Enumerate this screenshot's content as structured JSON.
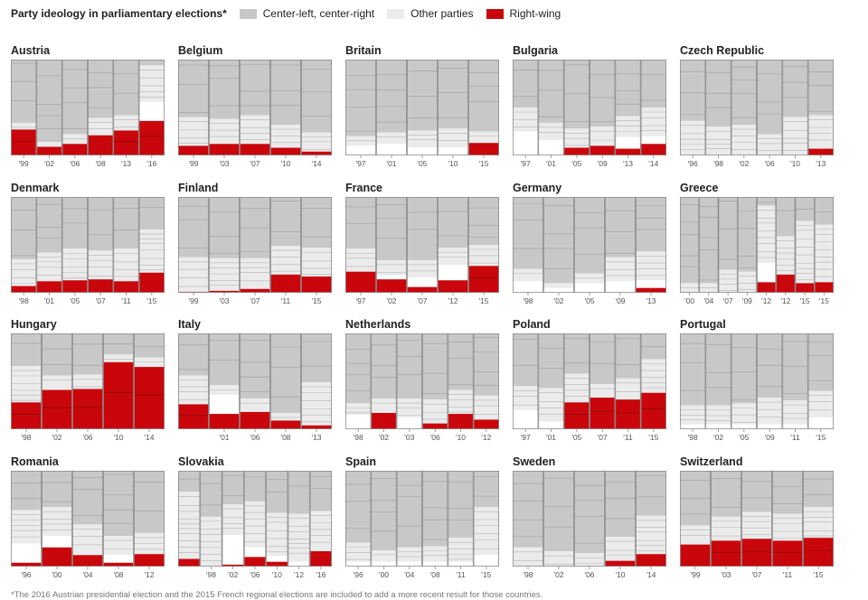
{
  "legend": {
    "title": "Party ideology in parliamentary elections*",
    "items": [
      {
        "label": "Center-left, center-right",
        "color": "#c8c8c8"
      },
      {
        "label": "Other parties",
        "color": "#ebebeb"
      },
      {
        "label": "Right-wing",
        "color": "#c8060b"
      }
    ]
  },
  "footnote": "*The 2016 Austrian presidential election and the 2015 French regional elections are included to add a more recent result for those countries.",
  "chart_data": {
    "type": "bar",
    "subtype": "stacked-100-percent-small-multiples",
    "title": "Party ideology in parliamentary elections*",
    "ylim": [
      0,
      100
    ],
    "colors": {
      "center": "#c8c8c8",
      "other": "#ebebeb",
      "right": "#c8060b",
      "white": "#ffffff"
    },
    "panels": [
      {
        "country": "Austria",
        "years": [
          "'99",
          "'02",
          "'06",
          "'08",
          "'13",
          "'16"
        ],
        "right": [
          27,
          9,
          12,
          21,
          26,
          36
        ],
        "other": [
          7,
          5,
          10,
          18,
          16,
          38
        ],
        "white_gap": [
          0,
          0,
          0,
          0,
          0,
          20
        ]
      },
      {
        "country": "Belgium",
        "years": [
          "'99",
          "'03",
          "'07",
          "'10",
          "'14"
        ],
        "right": [
          10,
          12,
          12,
          8,
          4
        ],
        "other": [
          30,
          26,
          30,
          24,
          20
        ]
      },
      {
        "country": "Britain",
        "years": [
          "'97",
          "'01",
          "'05",
          "'10",
          "'15"
        ],
        "right": [
          0,
          0,
          0,
          0,
          13
        ],
        "other": [
          10,
          12,
          18,
          20,
          12
        ],
        "white_gap": [
          10,
          12,
          8,
          8,
          0
        ]
      },
      {
        "country": "Bulgaria",
        "years": [
          "'97",
          "'01",
          "'05",
          "'09",
          "'13",
          "'14"
        ],
        "right": [
          0,
          0,
          8,
          10,
          7,
          12
        ],
        "other": [
          25,
          18,
          20,
          20,
          22,
          30
        ],
        "white_gap": [
          25,
          16,
          0,
          0,
          12,
          8
        ]
      },
      {
        "country": "Czech Republic",
        "years": [
          "'96",
          "'98",
          "'02",
          "'06",
          "'10",
          "'13"
        ],
        "right": [
          0,
          0,
          0,
          0,
          0,
          7
        ],
        "other": [
          36,
          30,
          32,
          22,
          40,
          35
        ]
      },
      {
        "country": "Denmark",
        "years": [
          "'98",
          "'01",
          "'05",
          "'07",
          "'11",
          "'15"
        ],
        "right": [
          7,
          12,
          13,
          14,
          12,
          21
        ],
        "other": [
          28,
          30,
          33,
          30,
          34,
          45
        ]
      },
      {
        "country": "Finland",
        "years": [
          "'99",
          "'03",
          "'07",
          "'11",
          "'15"
        ],
        "right": [
          1,
          2,
          4,
          19,
          17
        ],
        "other": [
          36,
          34,
          32,
          30,
          30
        ]
      },
      {
        "country": "France",
        "years": [
          "'97",
          "'02",
          "'07",
          "'12",
          "'15"
        ],
        "right": [
          22,
          14,
          6,
          13,
          28
        ],
        "other": [
          24,
          16,
          18,
          18,
          22
        ],
        "white_gap": [
          0,
          4,
          10,
          16,
          0
        ]
      },
      {
        "country": "Germany",
        "years": [
          "'98",
          "'02",
          "'05",
          "'09",
          "'13"
        ],
        "right": [
          0,
          0,
          0,
          0,
          5
        ],
        "other": [
          13,
          5,
          10,
          25,
          30
        ],
        "white_gap": [
          12,
          5,
          10,
          12,
          8
        ]
      },
      {
        "country": "Greece",
        "years": [
          "'00",
          "'04",
          "'07",
          "'09",
          "'12",
          "'12",
          "'15",
          "'15"
        ],
        "right": [
          0,
          0,
          0,
          0,
          11,
          19,
          10,
          11
        ],
        "other": [
          10,
          10,
          24,
          22,
          60,
          40,
          65,
          60
        ],
        "white_gap": [
          0,
          0,
          0,
          0,
          20,
          0,
          0,
          0
        ]
      },
      {
        "country": "Hungary",
        "years": [
          "'98",
          "'02",
          "'06",
          "'10",
          "'14"
        ],
        "right": [
          28,
          41,
          42,
          70,
          65
        ],
        "other": [
          38,
          15,
          15,
          8,
          10
        ]
      },
      {
        "country": "Italy",
        "years": [
          "'01",
          "'06",
          "'08",
          "'13"
        ],
        "pre_bars": [
          {
            "right": 26,
            "other": 30
          }
        ],
        "right": [
          16,
          18,
          9,
          4
        ],
        "other": [
          10,
          14,
          8,
          45
        ],
        "white_gap": [
          20,
          0,
          0,
          0
        ]
      },
      {
        "country": "Netherlands",
        "years": [
          "'98",
          "'02",
          "'03",
          "'06",
          "'10",
          "'12"
        ],
        "right": [
          0,
          17,
          0,
          6,
          16,
          10
        ],
        "other": [
          12,
          15,
          20,
          25,
          25,
          25
        ],
        "white_gap": [
          15,
          0,
          12,
          0,
          0,
          0
        ]
      },
      {
        "country": "Poland",
        "years": [
          "'97",
          "'01",
          "'05",
          "'07",
          "'11",
          "'15"
        ],
        "right": [
          0,
          0,
          28,
          33,
          31,
          38
        ],
        "other": [
          25,
          35,
          30,
          14,
          22,
          35
        ],
        "white_gap": [
          20,
          8,
          0,
          0,
          0,
          0
        ]
      },
      {
        "country": "Portugal",
        "years": [
          "'98",
          "'02",
          "'05",
          "'09",
          "'11",
          "'15"
        ],
        "right": [
          0,
          0,
          0,
          0,
          0,
          0
        ],
        "other": [
          20,
          20,
          22,
          28,
          25,
          28
        ],
        "white_gap": [
          5,
          5,
          5,
          5,
          5,
          12
        ]
      },
      {
        "country": "Romania",
        "years": [
          "'96",
          "'00",
          "'04",
          "'08",
          "'12"
        ],
        "right": [
          4,
          20,
          12,
          4,
          13
        ],
        "other": [
          35,
          30,
          32,
          20,
          22
        ],
        "white_gap": [
          20,
          12,
          0,
          8,
          0
        ]
      },
      {
        "country": "Slovakia",
        "years": [
          "'98",
          "'02",
          "'06",
          "'10",
          "'12",
          "'16"
        ],
        "pre_bar": {
          "right": 8,
          "other": 70
        },
        "right": [
          0,
          2,
          10,
          5,
          0,
          16
        ],
        "other": [
          52,
          32,
          48,
          45,
          50,
          42
        ],
        "white_gap": [
          0,
          31,
          10,
          6,
          5,
          0
        ]
      },
      {
        "country": "Spain",
        "years": [
          "'96",
          "'00",
          "'04",
          "'08",
          "'11",
          "'15"
        ],
        "right": [
          0,
          0,
          0,
          0,
          0,
          0
        ],
        "other": [
          20,
          12,
          15,
          16,
          25,
          50
        ],
        "white_gap": [
          5,
          5,
          5,
          5,
          5,
          12
        ]
      },
      {
        "country": "Sweden",
        "years": [
          "'98",
          "'02",
          "'06",
          "'10",
          "'14"
        ],
        "right": [
          0,
          0,
          0,
          6,
          13
        ],
        "other": [
          20,
          16,
          14,
          25,
          40
        ]
      },
      {
        "country": "Switzerland",
        "years": [
          "'99",
          "'03",
          "'07",
          "'11",
          "'15"
        ],
        "right": [
          23,
          27,
          29,
          27,
          30
        ],
        "other": [
          20,
          25,
          28,
          28,
          32
        ]
      }
    ]
  }
}
